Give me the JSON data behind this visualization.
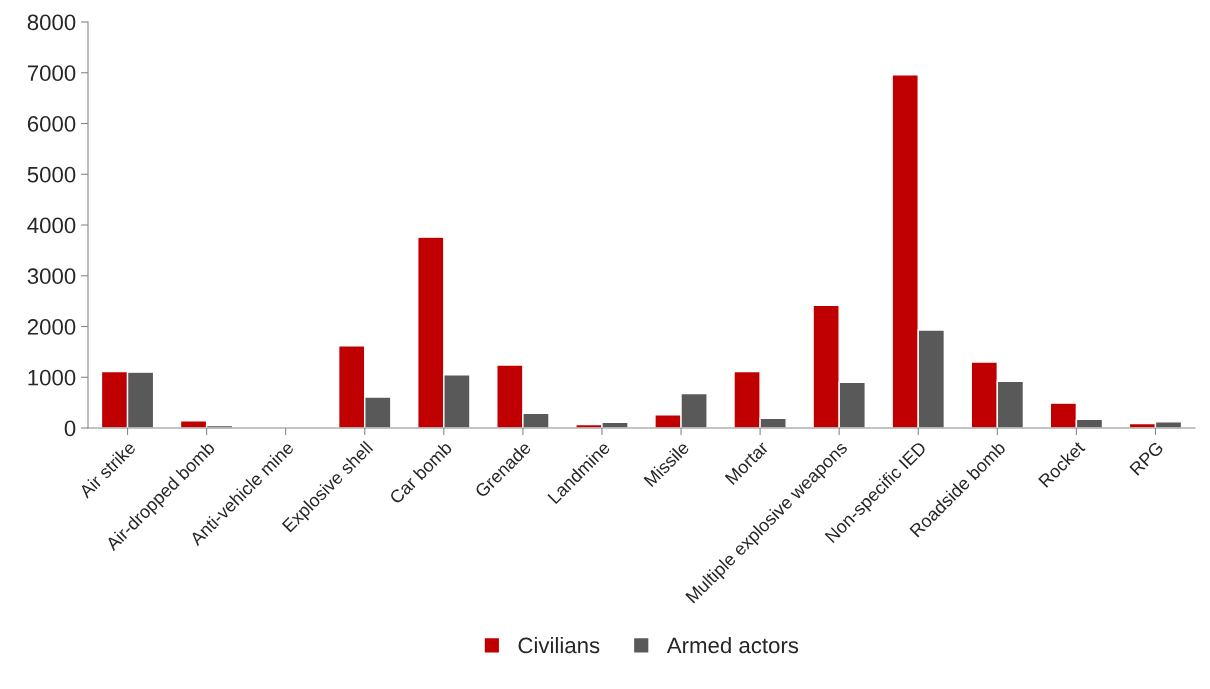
{
  "chart_data": {
    "type": "bar",
    "categories": [
      "Air strike",
      "Air-dropped bomb",
      "Anti-vehicle mine",
      "Explosive shell",
      "Car bomb",
      "Grenade",
      "Landmine",
      "Missile",
      "Mortar",
      "Multiple explosive weapons",
      "Non-specific IED",
      "Roadside bomb",
      "Rocket",
      "RPG"
    ],
    "series": [
      {
        "name": "Civilians",
        "color": "#c00000",
        "values": [
          1110,
          140,
          null,
          1620,
          3760,
          1240,
          70,
          260,
          1110,
          2420,
          6960,
          1300,
          490,
          90
        ]
      },
      {
        "name": "Armed actors",
        "color": "#595959",
        "values": [
          1100,
          50,
          null,
          610,
          1050,
          290,
          110,
          680,
          190,
          900,
          1930,
          920,
          170,
          120
        ]
      }
    ],
    "ylim": [
      0,
      8000
    ],
    "yticks": [
      0,
      1000,
      2000,
      3000,
      4000,
      5000,
      6000,
      7000,
      8000
    ],
    "grid": false,
    "legend": "bottom"
  }
}
